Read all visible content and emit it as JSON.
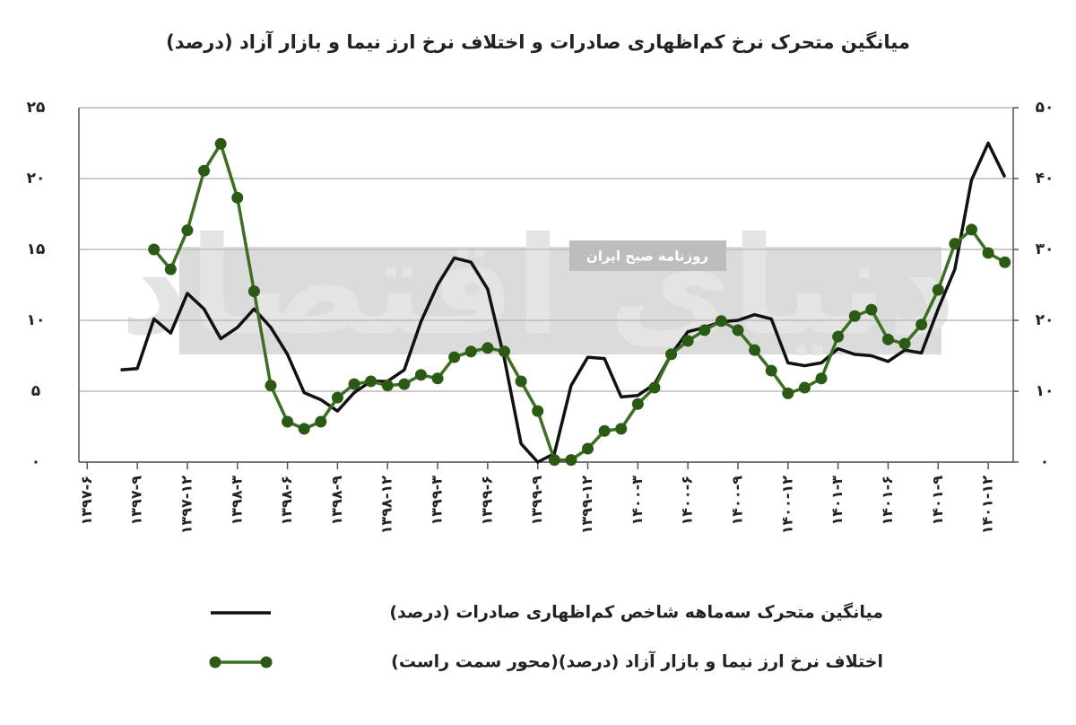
{
  "chart_data": {
    "type": "line",
    "title": "میانگین متحرک نرخ کم‌اظهاری صادرات و اختلاف نرخ ارز نیما و بازار آزاد (درصد)",
    "watermark": "دنیای اقتصاد",
    "watermark_subtitle": "روزنامه صبح ایران",
    "categories": [
      "۱۳۹۷-۶",
      null,
      null,
      "۱۳۹۷-۹",
      null,
      null,
      "۱۳۹۷-۱۲",
      null,
      null,
      "۱۳۹۸-۳",
      null,
      null,
      "۱۳۹۸-۶",
      null,
      null,
      "۱۳۹۸-۹",
      null,
      null,
      "۱۳۹۸-۱۲",
      null,
      null,
      "۱۳۹۹-۳",
      null,
      null,
      "۱۳۹۹-۶",
      null,
      null,
      "۱۳۹۹-۹",
      null,
      null,
      "۱۳۹۹-۱۲",
      null,
      null,
      "۱۴۰۰-۳",
      null,
      null,
      "۱۴۰۰-۶",
      null,
      null,
      "۱۴۰۰-۹",
      null,
      null,
      "۱۴۰۰-۱۲",
      null,
      null,
      "۱۴۰۱-۳",
      null,
      null,
      "۱۴۰۱-۶",
      null,
      null,
      "۱۴۰۱-۹",
      null,
      null,
      "۱۴۰۱-۱۲",
      null
    ],
    "series": [
      {
        "name": "میانگین متحرک سه‌ماهه شاخص کم‌اظهاری صادرات (درصد)",
        "color": "#111111",
        "marker": false,
        "values": [
          null,
          null,
          6.5,
          6.6,
          10.1,
          9.1,
          11.9,
          10.8,
          8.7,
          9.5,
          10.8,
          9.5,
          7.6,
          4.9,
          4.4,
          3.6,
          4.9,
          5.7,
          5.7,
          6.5,
          9.9,
          12.5,
          14.4,
          14.1,
          12.2,
          7.3,
          1.3,
          0,
          0.6,
          5.4,
          7.4,
          7.3,
          4.6,
          4.7,
          5.5,
          7.6,
          9.2,
          9.5,
          9.9,
          10.0,
          10.4,
          10.1,
          7.0,
          6.8,
          7.0,
          8.0,
          7.6,
          7.5,
          7.1,
          7.9,
          7.7,
          10.8,
          13.6,
          19.9,
          22.5,
          20.1
        ]
      },
      {
        "name": "اختلاف نرخ ارز نیما و بازار آزاد (درصد)(محور سمت راست)",
        "color": "#3d6f22",
        "marker": true,
        "axis": "y2",
        "values": [
          null,
          null,
          null,
          null,
          30.0,
          27.2,
          32.7,
          41.1,
          44.9,
          37.3,
          24.1,
          10.8,
          5.7,
          4.7,
          5.7,
          9.1,
          11.0,
          11.4,
          10.8,
          11.0,
          12.3,
          11.8,
          14.8,
          15.6,
          16.1,
          15.6,
          11.4,
          7.2,
          0.3,
          0.3,
          1.9,
          4.4,
          4.7,
          8.2,
          10.5,
          15.2,
          17.1,
          18.6,
          19.9,
          18.6,
          15.8,
          12.9,
          9.7,
          10.5,
          11.8,
          17.7,
          20.6,
          21.5,
          17.3,
          16.7,
          19.4,
          24.3,
          30.8,
          32.8,
          29.5,
          28.2
        ]
      }
    ],
    "ylim": [
      0,
      25
    ],
    "yticks": [
      {
        "value": 0,
        "label": "۰"
      },
      {
        "value": 5,
        "label": "۵"
      },
      {
        "value": 10,
        "label": "۱۰"
      },
      {
        "value": 15,
        "label": "۱۵"
      },
      {
        "value": 20,
        "label": "۲۰"
      },
      {
        "value": 25,
        "label": "۲۵"
      }
    ],
    "y2lim": [
      0,
      50
    ],
    "y2ticks": [
      {
        "value": 0,
        "label": "۰"
      },
      {
        "value": 10,
        "label": "۱۰"
      },
      {
        "value": 20,
        "label": "۲۰"
      },
      {
        "value": 30,
        "label": "۳۰"
      },
      {
        "value": 40,
        "label": "۴۰"
      },
      {
        "value": 50,
        "label": "۵۰"
      }
    ],
    "grid": true
  }
}
